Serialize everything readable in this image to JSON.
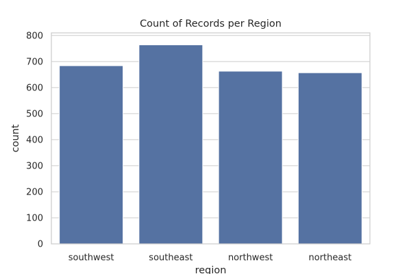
{
  "chart_data": {
    "type": "bar",
    "title": "Count of Records per Region",
    "xlabel": "region",
    "ylabel": "count",
    "categories": [
      "southwest",
      "southeast",
      "northwest",
      "northeast"
    ],
    "values": [
      684,
      764,
      663,
      657
    ],
    "ylim": [
      0,
      810
    ],
    "yticks": [
      0,
      100,
      200,
      300,
      400,
      500,
      600,
      700,
      800
    ],
    "grid": true,
    "legend": false,
    "colors": {
      "bar": "#5572a2",
      "grid": "#cccccc",
      "frame": "#cccccc",
      "text": "#262626"
    }
  }
}
